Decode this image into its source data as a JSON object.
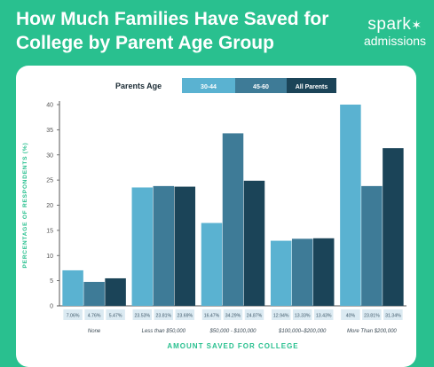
{
  "header": {
    "title": "How Much Families Have Saved for College by Parent Age Group",
    "brand_name": "spark",
    "brand_star": "✶",
    "brand_sub": "admissions"
  },
  "colors": {
    "background": "#29c08f",
    "series": [
      "#5ab2d1",
      "#3e7b97",
      "#1b4458"
    ],
    "axis_label": "#29c08f",
    "value_box": "#dbeaf2"
  },
  "chart_data": {
    "type": "bar",
    "title": "How Much Families Have Saved for College by Parent Age Group",
    "xlabel": "AMOUNT SAVED FOR COLLEGE",
    "ylabel": "PERCENTAGE OF RESPONDENTS (%)",
    "ylim": [
      0,
      40
    ],
    "yticks": [
      0,
      5,
      10,
      15,
      20,
      25,
      30,
      35,
      40
    ],
    "grid": false,
    "legend": {
      "title": "Parents Age",
      "placement": "top"
    },
    "categories": [
      "None",
      "Less than $50,000",
      "$50,000 - $100,000",
      "$100,000–$200,000",
      "More Than $200,000"
    ],
    "series": [
      {
        "name": "30-44",
        "values": [
          7.06,
          23.53,
          16.47,
          12.94,
          40
        ],
        "labels": [
          "7.06%",
          "23.53%",
          "16.47%",
          "12.94%",
          "40%"
        ]
      },
      {
        "name": "45-60",
        "values": [
          4.76,
          23.81,
          34.29,
          13.33,
          23.81
        ],
        "labels": [
          "4.76%",
          "23.81%",
          "34.29%",
          "13.33%",
          "23.81%"
        ]
      },
      {
        "name": "All Parents",
        "values": [
          5.47,
          23.69,
          24.87,
          13.43,
          31.34
        ],
        "labels": [
          "5.47%",
          "23.69%",
          "24.87%",
          "13.43%",
          "31.34%"
        ]
      }
    ]
  }
}
